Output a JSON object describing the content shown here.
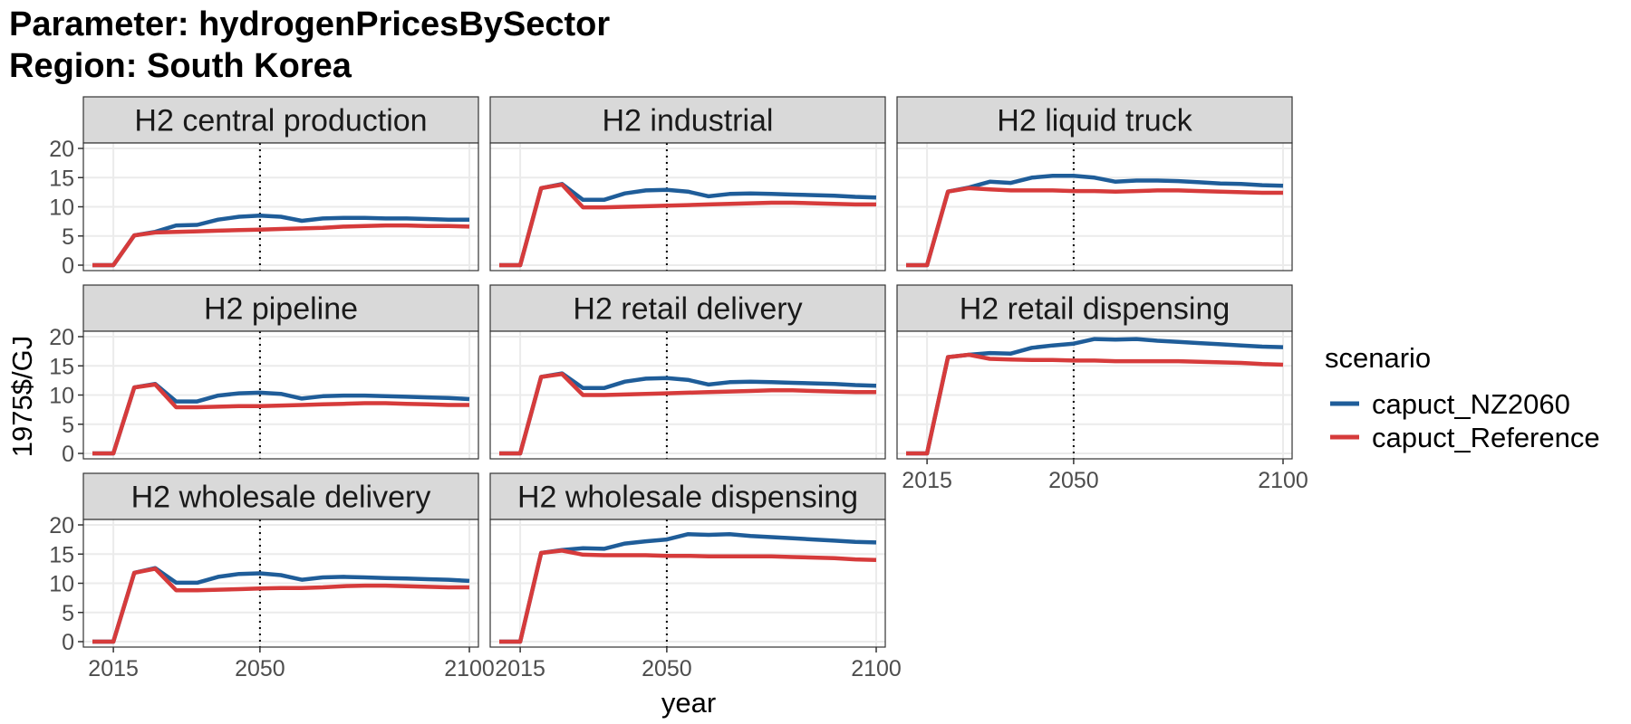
{
  "title_lines": [
    "Parameter: hydrogenPricesBySector",
    "Region: South Korea"
  ],
  "colors": {
    "capuct_NZ2060": "#1f5d99",
    "capuct_Reference": "#d63b3b",
    "strip_bg": "#d9d9d9",
    "grid": "#ebebeb",
    "panel_border": "#333333"
  },
  "chart_data": {
    "type": "line",
    "xlabel": "year",
    "ylabel": "1975$/GJ",
    "xlim": [
      2010,
      2100
    ],
    "ylim": [
      0,
      20
    ],
    "x_ticks": [
      2015,
      2050,
      2100
    ],
    "y_ticks": [
      0,
      5,
      10,
      15,
      20
    ],
    "reference_line_x": 2050,
    "grid": true,
    "legend": {
      "title": "scenario",
      "position": "right",
      "entries": [
        "capuct_NZ2060",
        "capuct_Reference"
      ]
    },
    "x": [
      2010,
      2015,
      2020,
      2025,
      2030,
      2035,
      2040,
      2045,
      2050,
      2055,
      2060,
      2065,
      2070,
      2075,
      2080,
      2085,
      2090,
      2095,
      2100
    ],
    "panels": [
      {
        "name": "H2 central production",
        "series": [
          {
            "name": "capuct_NZ2060",
            "values": [
              0,
              0,
              5.1,
              5.7,
              6.8,
              6.9,
              7.8,
              8.3,
              8.5,
              8.3,
              7.6,
              8.0,
              8.1,
              8.1,
              8.0,
              8.0,
              7.9,
              7.8,
              7.8
            ]
          },
          {
            "name": "capuct_Reference",
            "values": [
              0,
              0,
              5.1,
              5.6,
              5.7,
              5.8,
              5.9,
              6.0,
              6.1,
              6.2,
              6.3,
              6.4,
              6.6,
              6.7,
              6.8,
              6.8,
              6.7,
              6.7,
              6.6
            ]
          }
        ]
      },
      {
        "name": "H2 industrial",
        "series": [
          {
            "name": "capuct_NZ2060",
            "values": [
              0,
              0,
              13.2,
              13.9,
              11.2,
              11.2,
              12.3,
              12.8,
              12.9,
              12.6,
              11.8,
              12.2,
              12.3,
              12.2,
              12.1,
              12.0,
              11.9,
              11.7,
              11.6
            ]
          },
          {
            "name": "capuct_Reference",
            "values": [
              0,
              0,
              13.2,
              13.8,
              9.9,
              9.9,
              10.0,
              10.1,
              10.2,
              10.3,
              10.4,
              10.5,
              10.6,
              10.7,
              10.7,
              10.6,
              10.5,
              10.4,
              10.4
            ]
          }
        ]
      },
      {
        "name": "H2 liquid truck",
        "series": [
          {
            "name": "capuct_NZ2060",
            "values": [
              0,
              0,
              12.6,
              13.3,
              14.3,
              14.1,
              15.0,
              15.3,
              15.3,
              15.0,
              14.3,
              14.5,
              14.5,
              14.4,
              14.2,
              14.0,
              13.9,
              13.7,
              13.6
            ]
          },
          {
            "name": "capuct_Reference",
            "values": [
              0,
              0,
              12.6,
              13.2,
              13.0,
              12.8,
              12.8,
              12.8,
              12.7,
              12.7,
              12.6,
              12.7,
              12.8,
              12.8,
              12.7,
              12.6,
              12.5,
              12.4,
              12.4
            ]
          }
        ]
      },
      {
        "name": "H2 pipeline",
        "series": [
          {
            "name": "capuct_NZ2060",
            "values": [
              0,
              0,
              11.3,
              11.9,
              8.9,
              8.9,
              9.9,
              10.3,
              10.4,
              10.2,
              9.4,
              9.8,
              9.9,
              9.9,
              9.8,
              9.7,
              9.6,
              9.5,
              9.3
            ]
          },
          {
            "name": "capuct_Reference",
            "values": [
              0,
              0,
              11.3,
              11.8,
              7.9,
              7.9,
              8.0,
              8.1,
              8.1,
              8.2,
              8.3,
              8.4,
              8.5,
              8.6,
              8.6,
              8.5,
              8.4,
              8.3,
              8.3
            ]
          }
        ]
      },
      {
        "name": "H2 retail delivery",
        "series": [
          {
            "name": "capuct_NZ2060",
            "values": [
              0,
              0,
              13.1,
              13.7,
              11.2,
              11.2,
              12.3,
              12.8,
              12.9,
              12.6,
              11.8,
              12.2,
              12.3,
              12.2,
              12.1,
              12.0,
              11.9,
              11.7,
              11.6
            ]
          },
          {
            "name": "capuct_Reference",
            "values": [
              0,
              0,
              13.1,
              13.6,
              10.0,
              10.0,
              10.1,
              10.2,
              10.3,
              10.4,
              10.5,
              10.6,
              10.7,
              10.8,
              10.8,
              10.7,
              10.6,
              10.5,
              10.5
            ]
          }
        ]
      },
      {
        "name": "H2 retail dispensing",
        "series": [
          {
            "name": "capuct_NZ2060",
            "values": [
              0,
              0,
              16.5,
              16.9,
              17.2,
              17.1,
              18.1,
              18.5,
              18.8,
              19.6,
              19.5,
              19.6,
              19.3,
              19.1,
              18.9,
              18.7,
              18.5,
              18.3,
              18.2
            ]
          },
          {
            "name": "capuct_Reference",
            "values": [
              0,
              0,
              16.5,
              16.9,
              16.2,
              16.1,
              16.0,
              16.0,
              15.9,
              15.9,
              15.8,
              15.8,
              15.8,
              15.8,
              15.7,
              15.6,
              15.5,
              15.3,
              15.2
            ]
          }
        ]
      },
      {
        "name": "H2 wholesale delivery",
        "series": [
          {
            "name": "capuct_NZ2060",
            "values": [
              0,
              0,
              11.8,
              12.6,
              10.1,
              10.1,
              11.1,
              11.6,
              11.7,
              11.4,
              10.6,
              11.0,
              11.1,
              11.0,
              10.9,
              10.8,
              10.7,
              10.6,
              10.4
            ]
          },
          {
            "name": "capuct_Reference",
            "values": [
              0,
              0,
              11.8,
              12.5,
              8.8,
              8.8,
              8.9,
              9.0,
              9.1,
              9.2,
              9.2,
              9.3,
              9.5,
              9.6,
              9.6,
              9.5,
              9.4,
              9.3,
              9.3
            ]
          }
        ]
      },
      {
        "name": "H2 wholesale dispensing",
        "series": [
          {
            "name": "capuct_NZ2060",
            "values": [
              0,
              0,
              15.2,
              15.7,
              16.0,
              15.9,
              16.8,
              17.2,
              17.5,
              18.4,
              18.3,
              18.4,
              18.1,
              17.9,
              17.7,
              17.5,
              17.3,
              17.1,
              17.0
            ]
          },
          {
            "name": "capuct_Reference",
            "values": [
              0,
              0,
              15.2,
              15.6,
              14.9,
              14.8,
              14.8,
              14.8,
              14.7,
              14.7,
              14.6,
              14.6,
              14.6,
              14.6,
              14.5,
              14.4,
              14.3,
              14.1,
              14.0
            ]
          }
        ]
      }
    ]
  }
}
